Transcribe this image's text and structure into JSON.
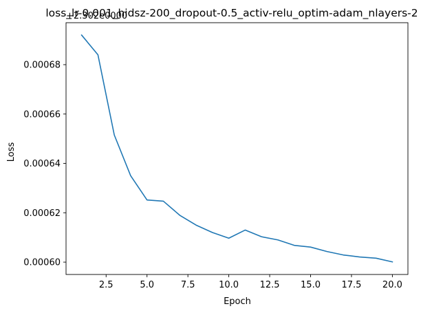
{
  "chart_data": {
    "type": "line",
    "title": "loss_lr-0.001_hidsz-200_dropout-0.5_activ-relu_optim-adam_nlayers-2",
    "xlabel": "Epoch",
    "ylabel": "Loss",
    "y_offset_label": "+2.302e0000",
    "xlim": [
      0.05,
      20.95
    ],
    "ylim": [
      0.000595,
      0.000697
    ],
    "x_ticks": [
      2.5,
      5.0,
      7.5,
      10.0,
      12.5,
      15.0,
      17.5,
      20.0
    ],
    "x_tick_labels": [
      "2.5",
      "5.0",
      "7.5",
      "10.0",
      "12.5",
      "15.0",
      "17.5",
      "20.0"
    ],
    "y_ticks": [
      0.0006,
      0.00062,
      0.00064,
      0.00066,
      0.00068
    ],
    "y_tick_labels": [
      "0.00060",
      "0.00062",
      "0.00064",
      "0.00066",
      "0.00068"
    ],
    "grid": false,
    "line_color": "#1f77b4",
    "series": [
      {
        "x": [
          1,
          2,
          3,
          4,
          5,
          6,
          7,
          8,
          9,
          10,
          11,
          12,
          13,
          14,
          15,
          16,
          17,
          18,
          19,
          20
        ],
        "values": [
          0.000692,
          0.000684,
          0.0006515,
          0.000635,
          0.0006252,
          0.0006247,
          0.000619,
          0.000615,
          0.000612,
          0.0006097,
          0.000613,
          0.0006103,
          0.000609,
          0.0006068,
          0.0006061,
          0.0006043,
          0.0006029,
          0.0006021,
          0.0006016,
          0.0006001
        ]
      }
    ]
  }
}
